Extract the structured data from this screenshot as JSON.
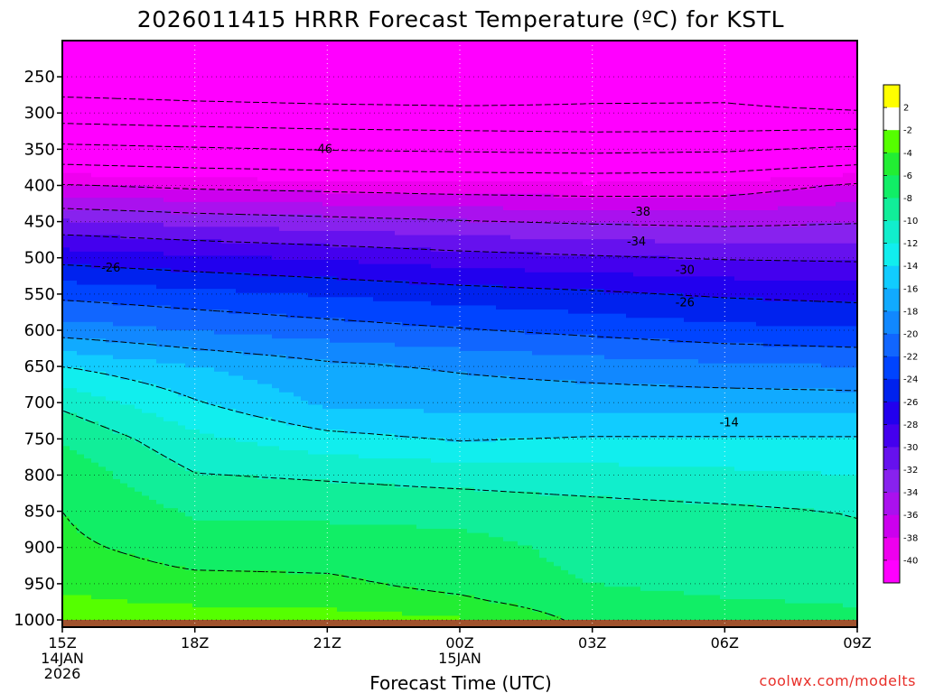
{
  "chart_data": {
    "type": "heatmap",
    "title": "2026011415 HRRR Forecast Temperature (ºC) for KSTL",
    "xlabel": "Forecast Time (UTC)",
    "credit": "coolwx.com/modelts",
    "x_ticks": [
      {
        "hour": 15,
        "lines": [
          "15Z",
          "14JAN",
          "2026"
        ]
      },
      {
        "hour": 18,
        "lines": [
          "18Z"
        ]
      },
      {
        "hour": 21,
        "lines": [
          "21Z"
        ]
      },
      {
        "hour": 24,
        "lines": [
          "00Z",
          "15JAN"
        ]
      },
      {
        "hour": 27,
        "lines": [
          "03Z"
        ]
      },
      {
        "hour": 30,
        "lines": [
          "06Z"
        ]
      },
      {
        "hour": 33,
        "lines": [
          "09Z"
        ]
      }
    ],
    "xlim": [
      15,
      33
    ],
    "y_ticks": [
      250,
      300,
      350,
      400,
      450,
      500,
      550,
      600,
      650,
      700,
      750,
      800,
      850,
      900,
      950,
      1000
    ],
    "ylim_hPa": [
      200,
      1010
    ],
    "surface_hPa": 1000,
    "colorbar": {
      "labels": [
        "2",
        "-2",
        "-4",
        "-6",
        "-8",
        "-10",
        "-12",
        "-14",
        "-16",
        "-18",
        "-20",
        "-22",
        "-24",
        "-26",
        "-28",
        "-30",
        "-32",
        "-34",
        "-36",
        "-38",
        "-40"
      ],
      "bands": [
        {
          "lo": 2,
          "hi": 6,
          "color": "#ffff00"
        },
        {
          "lo": -2,
          "hi": 2,
          "color": "#ffffff"
        },
        {
          "lo": -4,
          "hi": -2,
          "color": "#55ff00"
        },
        {
          "lo": -6,
          "hi": -4,
          "color": "#22ee33"
        },
        {
          "lo": -8,
          "hi": -6,
          "color": "#11ee66"
        },
        {
          "lo": -10,
          "hi": -8,
          "color": "#11ee99"
        },
        {
          "lo": -12,
          "hi": -10,
          "color": "#11eecc"
        },
        {
          "lo": -14,
          "hi": -12,
          "color": "#11eeee"
        },
        {
          "lo": -16,
          "hi": -14,
          "color": "#11ccff"
        },
        {
          "lo": -18,
          "hi": -16,
          "color": "#11aaff"
        },
        {
          "lo": -20,
          "hi": -18,
          "color": "#1188ff"
        },
        {
          "lo": -22,
          "hi": -20,
          "color": "#1166ff"
        },
        {
          "lo": -24,
          "hi": -22,
          "color": "#0044ff"
        },
        {
          "lo": -26,
          "hi": -24,
          "color": "#0022ee"
        },
        {
          "lo": -28,
          "hi": -26,
          "color": "#2200ee"
        },
        {
          "lo": -30,
          "hi": -28,
          "color": "#4400ee"
        },
        {
          "lo": -32,
          "hi": -30,
          "color": "#6611ee"
        },
        {
          "lo": -34,
          "hi": -32,
          "color": "#8822ee"
        },
        {
          "lo": -36,
          "hi": -34,
          "color": "#aa11ee"
        },
        {
          "lo": -38,
          "hi": -36,
          "color": "#cc00ee"
        },
        {
          "lo": -40,
          "hi": -38,
          "color": "#ee00ee"
        },
        {
          "lo": -60,
          "hi": -40,
          "color": "#ff00ff"
        }
      ]
    },
    "ground_color": "#a0522d",
    "zero_line_color": "#e8006e",
    "profile_hours": [
      15,
      18,
      21,
      24,
      27,
      30,
      33
    ],
    "profiles": [
      {
        "hPa": 1000,
        "temps": [
          -2,
          -2.5,
          -2.8,
          -3.8,
          -6.6,
          -7.2,
          -7.4
        ]
      },
      {
        "hPa": 975,
        "temps": [
          -3.6,
          -4.4,
          -4.8,
          -5.6,
          -7.2,
          -7.8,
          -8.2
        ]
      },
      {
        "hPa": 950,
        "temps": [
          -4.5,
          -5.4,
          -5.6,
          -6.6,
          -8.0,
          -8.6,
          -8.8
        ]
      },
      {
        "hPa": 925,
        "temps": [
          -5.2,
          -6.2,
          -6.3,
          -7.0,
          -8.4,
          -9.0,
          -9.2
        ]
      },
      {
        "hPa": 900,
        "temps": [
          -5.6,
          -6.8,
          -6.9,
          -7.3,
          -8.6,
          -9.2,
          -9.6
        ]
      },
      {
        "hPa": 850,
        "temps": [
          -6.0,
          -8.3,
          -8.5,
          -8.7,
          -9.2,
          -9.6,
          -10.1
        ]
      },
      {
        "hPa": 800,
        "temps": [
          -6.8,
          -9.9,
          -10.3,
          -10.8,
          -11.2,
          -11.6,
          -12.0
        ]
      },
      {
        "hPa": 750,
        "temps": [
          -8.2,
          -11.5,
          -13.3,
          -14.2,
          -13.8,
          -13.8,
          -13.8
        ]
      },
      {
        "hPa": 700,
        "temps": [
          -10.5,
          -13.8,
          -16.4,
          -16.7,
          -16.8,
          -16.9,
          -17.0
        ]
      },
      {
        "hPa": 650,
        "temps": [
          -14.0,
          -16.0,
          -17.5,
          -18.3,
          -19.0,
          -19.6,
          -20.0
        ]
      },
      {
        "hPa": 600,
        "temps": [
          -19.0,
          -20.1,
          -21.0,
          -21.8,
          -22.6,
          -23.4,
          -23.8
        ]
      },
      {
        "hPa": 550,
        "temps": [
          -22.6,
          -23.4,
          -24.2,
          -25.0,
          -25.6,
          -26.3,
          -26.7
        ]
      },
      {
        "hPa": 500,
        "temps": [
          -26.8,
          -27.6,
          -28.3,
          -29.1,
          -29.7,
          -30.2,
          -30.4
        ]
      },
      {
        "hPa": 450,
        "temps": [
          -31.8,
          -32.6,
          -33.2,
          -33.8,
          -34.3,
          -34.6,
          -34.2
        ]
      },
      {
        "hPa": 400,
        "temps": [
          -37.8,
          -38.6,
          -39.0,
          -39.4,
          -39.6,
          -39.4,
          -37.6
        ]
      },
      {
        "hPa": 350,
        "temps": [
          -45.0,
          -45.6,
          -46.2,
          -46.5,
          -46.8,
          -46.5,
          -45.3
        ]
      },
      {
        "hPa": 300,
        "temps": [
          -52.0,
          -52.6,
          -53.0,
          -53.3,
          -53.5,
          -53.6,
          -53.8
        ]
      },
      {
        "hPa": 250,
        "temps": [
          -56.5,
          -56.8,
          -57.0,
          -56.8,
          -55.4,
          -55.0,
          -56.4
        ]
      },
      {
        "hPa": 200,
        "temps": [
          -57.5,
          -57.5,
          -57.3,
          -57.2,
          -57.0,
          -56.8,
          -57.0
        ]
      }
    ],
    "contour_levels": [
      2,
      -2,
      -6,
      -10,
      -14,
      -18,
      -22,
      -26,
      -30,
      -34,
      -38,
      -42,
      -46,
      -50,
      -54
    ],
    "contour_labels": [
      {
        "text": "-46",
        "hour": 20.9,
        "hPa": 350
      },
      {
        "text": "-38",
        "hour": 28.1,
        "hPa": 437
      },
      {
        "text": "-34",
        "hour": 28.0,
        "hPa": 478
      },
      {
        "text": "-30",
        "hour": 29.1,
        "hPa": 517
      },
      {
        "text": "-26",
        "hour": 29.1,
        "hPa": 562
      },
      {
        "text": "-26",
        "hour": 16.1,
        "hPa": 514
      },
      {
        "text": "-14",
        "hour": 30.1,
        "hPa": 728
      }
    ]
  }
}
